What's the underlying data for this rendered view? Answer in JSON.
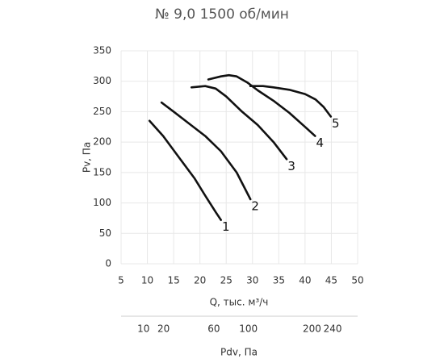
{
  "chart_data": {
    "type": "line",
    "title": "№ 9,0 1500 об/мин",
    "xlabel": "Q, тыс. м³/ч",
    "ylabel": "Pv, Па",
    "x2label": "Pdv, Па",
    "xlim": [
      5,
      50
    ],
    "xticks": [
      5,
      10,
      15,
      20,
      25,
      30,
      35,
      40,
      45,
      50
    ],
    "ylim": [
      0,
      350
    ],
    "yticks": [
      0,
      50,
      100,
      150,
      200,
      250,
      300,
      350
    ],
    "x2lim": [
      2.9,
      293
    ],
    "x2scale": "sqrt",
    "x2ticks": [
      10,
      20,
      60,
      100,
      200,
      240
    ],
    "grid": true,
    "series": [
      {
        "name": "1",
        "color": "#111111",
        "x": [
          10.4,
          13,
          16,
          19,
          21,
          23,
          24
        ],
        "values": [
          235,
          210,
          175,
          140,
          112,
          85,
          72
        ]
      },
      {
        "name": "2",
        "color": "#111111",
        "x": [
          12.7,
          15,
          18,
          21,
          24,
          27,
          29.6
        ],
        "values": [
          265,
          250,
          230,
          210,
          185,
          150,
          106
        ]
      },
      {
        "name": "3",
        "color": "#111111",
        "x": [
          18.4,
          21,
          23,
          25,
          28,
          31,
          34,
          36.5
        ],
        "values": [
          290,
          292,
          288,
          275,
          250,
          228,
          200,
          172
        ]
      },
      {
        "name": "4",
        "color": "#111111",
        "x": [
          21.6,
          24,
          25.5,
          27,
          29,
          31,
          34,
          37,
          40,
          41.9
        ],
        "values": [
          303,
          308,
          310,
          308,
          298,
          285,
          268,
          248,
          225,
          210
        ]
      },
      {
        "name": "5",
        "color": "#111111",
        "x": [
          29.6,
          32,
          34,
          37,
          40,
          42,
          43.5,
          44.9
        ],
        "values": [
          292,
          292,
          290,
          286,
          279,
          270,
          258,
          242
        ]
      }
    ]
  }
}
